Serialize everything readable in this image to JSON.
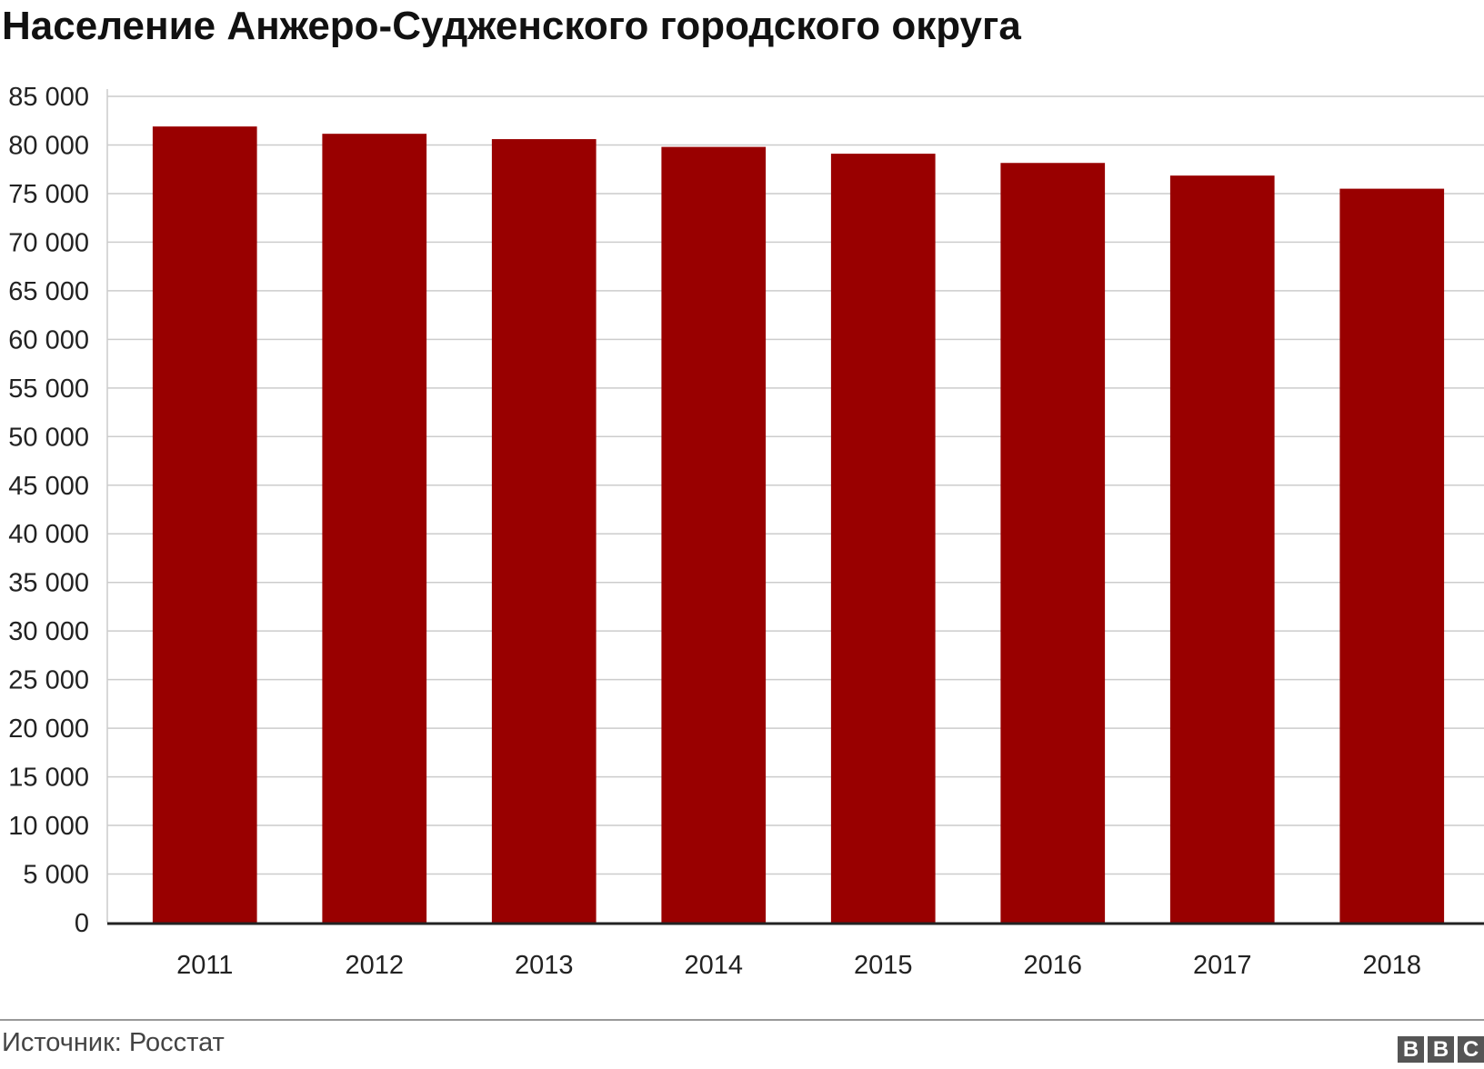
{
  "title": "Население Анжеро-Судженского городского округа",
  "source": "Источник: Росстат",
  "logo": [
    "B",
    "B",
    "C"
  ],
  "colors": {
    "bar": "#990000",
    "grid": "#cccccc",
    "axis": "#222222"
  },
  "chart_data": {
    "type": "bar",
    "title": "Население Анжеро-Судженского городского округа",
    "categories": [
      "2011",
      "2012",
      "2013",
      "2014",
      "2015",
      "2016",
      "2017",
      "2018"
    ],
    "values": [
      81900,
      81150,
      80600,
      79800,
      79100,
      78150,
      76850,
      75500
    ],
    "ylim": [
      0,
      85000
    ],
    "yticks": [
      0,
      5000,
      10000,
      15000,
      20000,
      25000,
      30000,
      35000,
      40000,
      45000,
      50000,
      55000,
      60000,
      65000,
      70000,
      75000,
      80000,
      85000
    ],
    "ytick_labels": [
      "0",
      "5 000",
      "10 000",
      "15 000",
      "20 000",
      "25 000",
      "30 000",
      "35 000",
      "40 000",
      "45 000",
      "50 000",
      "55 000",
      "60 000",
      "65 000",
      "70 000",
      "75 000",
      "80 000",
      "85 000"
    ],
    "xlabel": "",
    "ylabel": "",
    "grid": true,
    "legend": "none"
  }
}
